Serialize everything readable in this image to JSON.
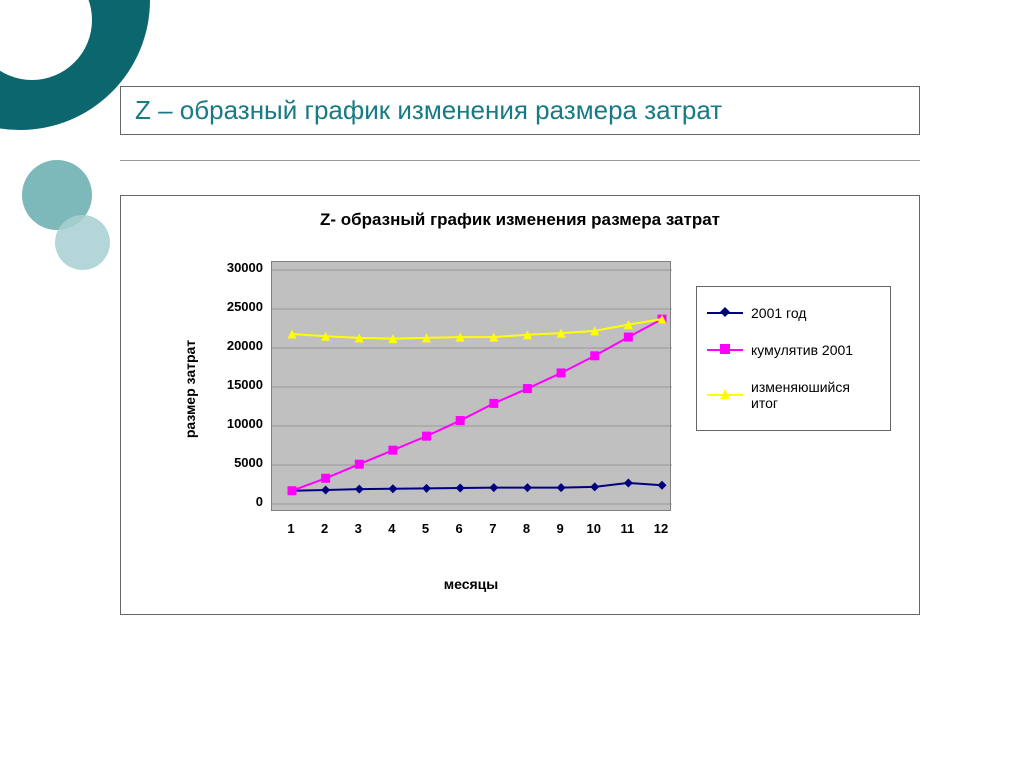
{
  "slide_title": "Z – образный график изменения размера затрат",
  "chart": {
    "type": "line",
    "title": "Z- образный график изменения размера затрат",
    "xlabel": "месяцы",
    "ylabel": "размер затрат",
    "title_fontsize": 17,
    "label_fontsize": 14,
    "tick_fontsize": 13,
    "background_color": "#ffffff",
    "plot_background_color": "#c0c0c0",
    "grid_color": "#808080",
    "border_color": "#666666",
    "x_categories": [
      "1",
      "2",
      "3",
      "4",
      "5",
      "6",
      "7",
      "8",
      "9",
      "10",
      "11",
      "12"
    ],
    "xlim": [
      1,
      12
    ],
    "ylim": [
      0,
      30000
    ],
    "ytick_step": 5000,
    "yticks": [
      0,
      5000,
      10000,
      15000,
      20000,
      25000,
      30000
    ],
    "line_width": 2,
    "marker_size": 9,
    "series": [
      {
        "name": "2001 год",
        "color": "#000080",
        "marker": "diamond",
        "values": [
          1700,
          1800,
          1900,
          1950,
          2000,
          2050,
          2100,
          2100,
          2100,
          2200,
          2700,
          2400
        ]
      },
      {
        "name": "кумулятив 2001",
        "color": "#ff00ff",
        "marker": "square",
        "values": [
          1700,
          3300,
          5100,
          6900,
          8700,
          10700,
          12900,
          14800,
          16800,
          19000,
          21400,
          23700
        ]
      },
      {
        "name": "изменяюшийся итог",
        "color": "#ffff00",
        "marker": "triangle",
        "values": [
          21800,
          21500,
          21300,
          21200,
          21300,
          21400,
          21400,
          21700,
          21900,
          22200,
          23000,
          23700
        ]
      }
    ]
  },
  "decor": {
    "main_circle_color": "#0c666e",
    "accent1_color": "#6fb0b3",
    "accent2_color": "#a8cfd1"
  }
}
